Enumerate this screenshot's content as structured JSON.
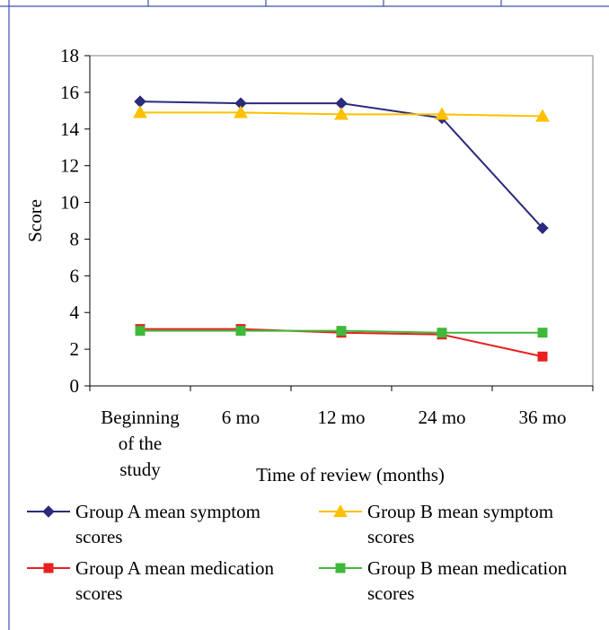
{
  "chart_data": {
    "type": "line",
    "categories": [
      [
        "Beginning",
        "of the",
        "study"
      ],
      [
        "6 mo"
      ],
      [
        "12 mo"
      ],
      [
        "24 mo"
      ],
      [
        "36 mo"
      ]
    ],
    "xlabel": "Time of review (months)",
    "ylabel": "Score",
    "ylim": [
      0,
      18
    ],
    "yticks": [
      "0",
      "2",
      "4",
      "6",
      "8",
      "10",
      "12",
      "14",
      "16",
      "18"
    ],
    "grid": false,
    "legend_position": "bottom",
    "series": [
      {
        "name_lines": [
          "Group A  mean symptom",
          "scores"
        ],
        "color": "#2B2A7C",
        "marker": "diamond",
        "values": [
          15.5,
          15.4,
          15.4,
          14.6,
          8.6
        ]
      },
      {
        "name_lines": [
          "Group B mean symptom",
          "scores"
        ],
        "color": "#FFC000",
        "marker": "triangle",
        "values": [
          14.9,
          14.9,
          14.8,
          14.8,
          14.7
        ]
      },
      {
        "name_lines": [
          "Group A  mean medication",
          "scores"
        ],
        "color": "#E8201E",
        "marker": "square",
        "values": [
          3.1,
          3.1,
          2.9,
          2.8,
          1.6
        ]
      },
      {
        "name_lines": [
          "Group B mean medication",
          "scores"
        ],
        "color": "#40B83A",
        "marker": "square",
        "values": [
          3.0,
          3.0,
          3.0,
          2.9,
          2.9
        ]
      }
    ]
  },
  "frame": {
    "border_color": "#3B4FB0"
  }
}
